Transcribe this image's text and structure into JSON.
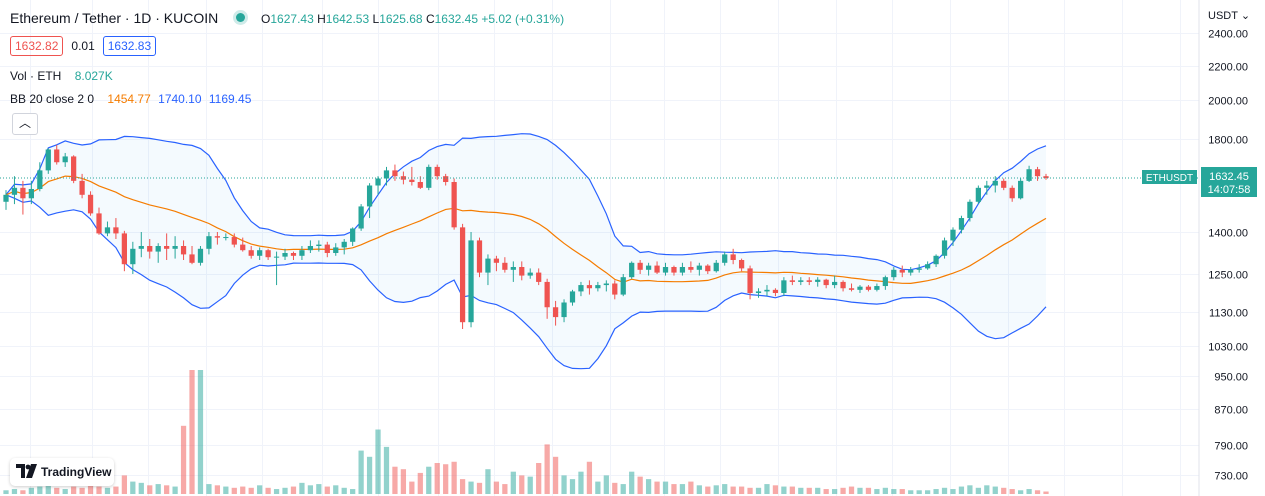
{
  "header": {
    "title": "Ethereum / Tether · 1D · KUCOIN",
    "open_label": "O",
    "open": "1627.43",
    "high_label": "H",
    "high": "1642.53",
    "low_label": "L",
    "low": "1625.68",
    "close_label": "C",
    "close": "1632.45",
    "change": "+5.02 (+0.31%)"
  },
  "trade": {
    "sell": "1632.82",
    "spread": "0.01",
    "buy": "1632.83"
  },
  "volume_legend": {
    "label": "Vol · ETH",
    "value": "8.027K"
  },
  "bb_legend": {
    "label": "BB 20 close 2 0",
    "basis": "1454.77",
    "upper": "1740.10",
    "lower": "1169.45"
  },
  "currency": "USDT",
  "collapse_glyph": "︿",
  "logo_text": "TradingView",
  "symbol_tag": "ETHUSDT",
  "last_price": "1632.45",
  "countdown": "14:07:58",
  "colors": {
    "up": "#26a69a",
    "down": "#ef5350",
    "basis": "#f57c00",
    "band": "#2962ff"
  },
  "chart_data": {
    "type": "candlestick",
    "price_axis": {
      "ticks": [
        "2400.00",
        "2200.00",
        "2000.00",
        "1800.00",
        "1400.00",
        "1250.00",
        "1130.00",
        "1030.00",
        "950.00",
        "870.00",
        "790.00",
        "730.00"
      ]
    },
    "candles": [
      [
        1530,
        1580,
        1495,
        1560
      ],
      [
        1560,
        1640,
        1520,
        1590
      ],
      [
        1590,
        1620,
        1475,
        1545
      ],
      [
        1545,
        1620,
        1520,
        1585
      ],
      [
        1585,
        1700,
        1575,
        1665
      ],
      [
        1665,
        1760,
        1650,
        1755
      ],
      [
        1755,
        1775,
        1690,
        1700
      ],
      [
        1700,
        1740,
        1680,
        1725
      ],
      [
        1725,
        1730,
        1610,
        1620
      ],
      [
        1620,
        1650,
        1545,
        1560
      ],
      [
        1560,
        1575,
        1470,
        1480
      ],
      [
        1480,
        1505,
        1390,
        1395
      ],
      [
        1395,
        1445,
        1385,
        1420
      ],
      [
        1420,
        1460,
        1375,
        1395
      ],
      [
        1395,
        1405,
        1260,
        1285
      ],
      [
        1285,
        1365,
        1250,
        1340
      ],
      [
        1340,
        1400,
        1310,
        1350
      ],
      [
        1350,
        1375,
        1305,
        1330
      ],
      [
        1330,
        1360,
        1290,
        1350
      ],
      [
        1350,
        1395,
        1300,
        1340
      ],
      [
        1340,
        1385,
        1305,
        1350
      ],
      [
        1350,
        1370,
        1300,
        1320
      ],
      [
        1320,
        1350,
        1285,
        1290
      ],
      [
        1290,
        1350,
        1280,
        1340
      ],
      [
        1340,
        1400,
        1320,
        1385
      ],
      [
        1385,
        1400,
        1355,
        1380
      ],
      [
        1380,
        1395,
        1370,
        1382
      ],
      [
        1382,
        1395,
        1345,
        1355
      ],
      [
        1355,
        1380,
        1330,
        1335
      ],
      [
        1335,
        1350,
        1305,
        1315
      ],
      [
        1315,
        1345,
        1300,
        1335
      ],
      [
        1335,
        1340,
        1300,
        1310
      ],
      [
        1310,
        1330,
        1215,
        1312
      ],
      [
        1312,
        1340,
        1300,
        1325
      ],
      [
        1325,
        1330,
        1300,
        1315
      ],
      [
        1315,
        1350,
        1300,
        1335
      ],
      [
        1335,
        1370,
        1325,
        1350
      ],
      [
        1350,
        1370,
        1330,
        1355
      ],
      [
        1355,
        1365,
        1310,
        1325
      ],
      [
        1325,
        1360,
        1315,
        1345
      ],
      [
        1345,
        1375,
        1320,
        1365
      ],
      [
        1365,
        1420,
        1350,
        1415
      ],
      [
        1415,
        1520,
        1405,
        1510
      ],
      [
        1510,
        1610,
        1460,
        1600
      ],
      [
        1600,
        1640,
        1560,
        1630
      ],
      [
        1630,
        1680,
        1600,
        1665
      ],
      [
        1665,
        1690,
        1620,
        1640
      ],
      [
        1640,
        1660,
        1605,
        1625
      ],
      [
        1625,
        1680,
        1600,
        1615
      ],
      [
        1615,
        1640,
        1585,
        1590
      ],
      [
        1590,
        1690,
        1580,
        1680
      ],
      [
        1680,
        1690,
        1625,
        1640
      ],
      [
        1640,
        1650,
        1600,
        1615
      ],
      [
        1615,
        1630,
        1410,
        1420
      ],
      [
        1420,
        1435,
        1080,
        1100
      ],
      [
        1100,
        1400,
        1085,
        1370
      ],
      [
        1370,
        1380,
        1240,
        1255
      ],
      [
        1255,
        1320,
        1215,
        1305
      ],
      [
        1305,
        1315,
        1260,
        1290
      ],
      [
        1290,
        1310,
        1255,
        1265
      ],
      [
        1265,
        1295,
        1225,
        1275
      ],
      [
        1275,
        1295,
        1230,
        1245
      ],
      [
        1245,
        1270,
        1235,
        1255
      ],
      [
        1255,
        1270,
        1215,
        1225
      ],
      [
        1225,
        1235,
        1110,
        1145
      ],
      [
        1145,
        1165,
        1090,
        1115
      ],
      [
        1115,
        1170,
        1100,
        1160
      ],
      [
        1160,
        1200,
        1150,
        1195
      ],
      [
        1195,
        1225,
        1180,
        1215
      ],
      [
        1215,
        1230,
        1185,
        1205
      ],
      [
        1205,
        1225,
        1195,
        1215
      ],
      [
        1215,
        1230,
        1195,
        1220
      ],
      [
        1220,
        1230,
        1170,
        1185
      ],
      [
        1185,
        1250,
        1180,
        1240
      ],
      [
        1240,
        1295,
        1235,
        1290
      ],
      [
        1290,
        1300,
        1250,
        1265
      ],
      [
        1265,
        1290,
        1245,
        1280
      ],
      [
        1280,
        1295,
        1250,
        1255
      ],
      [
        1255,
        1290,
        1245,
        1275
      ],
      [
        1275,
        1280,
        1245,
        1255
      ],
      [
        1255,
        1290,
        1245,
        1275
      ],
      [
        1275,
        1295,
        1255,
        1265
      ],
      [
        1265,
        1290,
        1245,
        1280
      ],
      [
        1280,
        1285,
        1250,
        1260
      ],
      [
        1260,
        1300,
        1255,
        1290
      ],
      [
        1290,
        1330,
        1280,
        1320
      ],
      [
        1320,
        1340,
        1285,
        1300
      ],
      [
        1300,
        1305,
        1260,
        1270
      ],
      [
        1270,
        1280,
        1170,
        1190
      ],
      [
        1190,
        1205,
        1175,
        1195
      ],
      [
        1195,
        1215,
        1180,
        1200
      ],
      [
        1200,
        1205,
        1180,
        1190
      ],
      [
        1190,
        1240,
        1180,
        1230
      ],
      [
        1230,
        1245,
        1215,
        1225
      ],
      [
        1225,
        1240,
        1215,
        1230
      ],
      [
        1230,
        1240,
        1215,
        1225
      ],
      [
        1225,
        1240,
        1210,
        1232
      ],
      [
        1232,
        1235,
        1205,
        1215
      ],
      [
        1215,
        1245,
        1205,
        1225
      ],
      [
        1225,
        1230,
        1195,
        1205
      ],
      [
        1205,
        1220,
        1195,
        1200
      ],
      [
        1200,
        1215,
        1190,
        1210
      ],
      [
        1210,
        1215,
        1195,
        1200
      ],
      [
        1200,
        1220,
        1195,
        1212
      ],
      [
        1212,
        1245,
        1200,
        1240
      ],
      [
        1240,
        1275,
        1230,
        1265
      ],
      [
        1265,
        1280,
        1240,
        1255
      ],
      [
        1255,
        1275,
        1245,
        1265
      ],
      [
        1265,
        1285,
        1255,
        1270
      ],
      [
        1270,
        1295,
        1265,
        1285
      ],
      [
        1285,
        1320,
        1275,
        1315
      ],
      [
        1315,
        1380,
        1305,
        1370
      ],
      [
        1370,
        1420,
        1350,
        1410
      ],
      [
        1410,
        1470,
        1395,
        1460
      ],
      [
        1460,
        1540,
        1445,
        1530
      ],
      [
        1530,
        1600,
        1520,
        1590
      ],
      [
        1590,
        1620,
        1560,
        1600
      ],
      [
        1600,
        1640,
        1570,
        1620
      ],
      [
        1620,
        1630,
        1580,
        1590
      ],
      [
        1590,
        1600,
        1530,
        1545
      ],
      [
        1545,
        1630,
        1540,
        1620
      ],
      [
        1620,
        1685,
        1615,
        1670
      ],
      [
        1670,
        1680,
        1620,
        1640
      ],
      [
        1640,
        1650,
        1625,
        1632
      ]
    ],
    "volume": [
      3,
      4,
      3,
      5,
      6,
      7,
      5,
      4,
      6,
      5,
      8,
      6,
      5,
      6,
      15,
      10,
      9,
      7,
      8,
      7,
      6,
      55,
      100,
      100,
      8,
      7,
      6,
      5,
      6,
      5,
      7,
      5,
      4,
      5,
      6,
      9,
      7,
      8,
      6,
      7,
      5,
      4,
      35,
      30,
      52,
      38,
      22,
      20,
      10,
      17,
      22,
      25,
      24,
      26,
      12,
      10,
      9,
      20,
      10,
      8,
      18,
      15,
      14,
      25,
      40,
      30,
      15,
      12,
      18,
      26,
      10,
      15,
      9,
      8,
      18,
      14,
      12,
      10,
      10,
      8,
      8,
      10,
      7,
      6,
      7,
      8,
      6,
      6,
      5,
      5,
      8,
      7,
      6,
      6,
      5,
      5,
      5,
      4,
      4,
      5,
      6,
      5,
      5,
      4,
      5,
      4,
      4,
      3,
      3,
      3,
      4,
      5,
      4,
      6,
      7,
      5,
      7,
      6,
      5,
      4,
      3,
      4,
      3,
      2
    ],
    "volume_max": 100,
    "indicator": "Bollinger Bands (20, 2)"
  }
}
